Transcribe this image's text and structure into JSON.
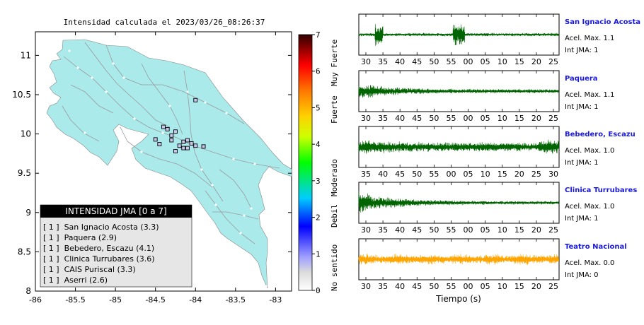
{
  "map": {
    "title": "Intensidad calculada el 2023/03/26_08:26:37",
    "x_ticks": [
      "-86",
      "-85.5",
      "-85",
      "-84.5",
      "-84",
      "-83.5",
      "-83"
    ],
    "y_ticks": [
      "11",
      "10.5",
      "10",
      "9.5",
      "9",
      "8.5",
      "8"
    ],
    "xlim": [
      -86,
      -82.8
    ],
    "ylim": [
      8,
      11.3
    ]
  },
  "colorbar": {
    "ticks": [
      "0",
      "1",
      "2",
      "3",
      "4",
      "5",
      "6",
      "7"
    ],
    "labels": [
      "No sentido",
      "Debil",
      "Moderado",
      "Fuerte",
      "Muy Fuerte"
    ]
  },
  "legend": {
    "title": "INTENSIDAD JMA [0 a 7]",
    "items": [
      "[ 1 ]  San Ignacio Acosta (3.3)",
      "[ 1 ]  Paquera (2.9)",
      "[ 1 ]  Bebedero, Escazu (4.1)",
      "[ 1 ]  Clinica Turrubares (3.6)",
      "[ 1 ]  CAIS Puriscal (3.3)",
      "[ 1 ]  Aserri (2.6)"
    ]
  },
  "traces": {
    "xlabel": "Tiempo (s)",
    "stations": [
      {
        "name": "San Ignacio Acosta",
        "accel": "Acel. Max. 1.1",
        "int": "Int JMA: 1",
        "color": "#006400",
        "ticks": [
          "30",
          "35",
          "40",
          "45",
          "50",
          "55",
          "00",
          "05",
          "10",
          "15",
          "20",
          "25"
        ]
      },
      {
        "name": "Paquera",
        "accel": "Acel. Max. 1.1",
        "int": "Int JMA: 1",
        "color": "#006400",
        "ticks": [
          "30",
          "35",
          "40",
          "45",
          "50",
          "55",
          "00",
          "05",
          "10",
          "15",
          "20",
          "25"
        ]
      },
      {
        "name": "Bebedero, Escazu",
        "accel": "Acel. Max. 1.0",
        "int": "Int JMA: 1",
        "color": "#006400",
        "ticks": [
          "35",
          "40",
          "45",
          "50",
          "55",
          "00",
          "05",
          "10",
          "15",
          "20",
          "25",
          "30"
        ]
      },
      {
        "name": "Clinica Turrubares",
        "accel": "Acel. Max. 1.0",
        "int": "Int JMA: 1",
        "color": "#006400",
        "ticks": [
          "30",
          "35",
          "40",
          "45",
          "50",
          "55",
          "00",
          "05",
          "10",
          "15",
          "20",
          "25"
        ]
      },
      {
        "name": "Teatro Nacional",
        "accel": "Acel. Max. 0.0",
        "int": "Int JMA: 0",
        "color": "#ffa500",
        "ticks": [
          "30",
          "35",
          "40",
          "45",
          "50",
          "55",
          "00",
          "05",
          "10",
          "15",
          "20",
          "25"
        ]
      }
    ]
  },
  "chart_data": [
    {
      "type": "scatter",
      "title": "Intensidad calculada el 2023/03/26_08:26:37",
      "xlim": [
        -86,
        -82.8
      ],
      "ylim": [
        8,
        11.3
      ],
      "x_ticks": [
        -86,
        -85.5,
        -85,
        -84.5,
        -84,
        -83.5,
        -83
      ],
      "y_ticks": [
        8,
        8.5,
        9,
        9.5,
        10,
        10.5,
        11
      ],
      "series": [
        {
          "name": "JMA 1",
          "x": [
            -84.0,
            -84.4,
            -84.35,
            -84.25,
            -84.3,
            -84.5,
            -84.3,
            -84.15,
            -84.1,
            -84.05,
            -84.2,
            -84.0,
            -83.9,
            -84.15,
            -84.45,
            -84.25,
            -84.1
          ],
          "y": [
            10.43,
            10.09,
            10.06,
            10.03,
            9.98,
            9.93,
            9.92,
            9.9,
            9.92,
            9.88,
            9.85,
            9.85,
            9.84,
            9.82,
            9.87,
            9.78,
            9.82
          ]
        }
      ]
    },
    {
      "type": "heatmap",
      "colorbar": {
        "min": 0,
        "max": 7,
        "ticks": [
          0,
          1,
          2,
          3,
          4,
          5,
          6,
          7
        ]
      }
    }
  ]
}
